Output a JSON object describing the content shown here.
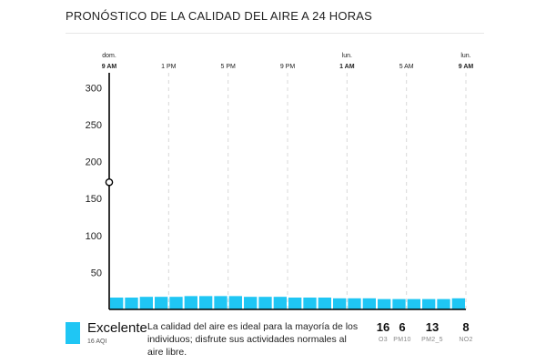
{
  "title": "PRONÓSTICO DE LA CALIDAD DEL AIRE A 24 HORAS",
  "colors": {
    "bar": "#1fc6f4",
    "axis": "#000000",
    "grid": "#d9d9d9"
  },
  "chart_data": {
    "type": "bar",
    "ylim": [
      0,
      320
    ],
    "yticks": [
      50,
      100,
      150,
      200,
      250,
      300
    ],
    "xticks": [
      {
        "hour": 0,
        "day": "dom.",
        "time": "9 AM"
      },
      {
        "hour": 4,
        "day": "",
        "time": "1 PM"
      },
      {
        "hour": 8,
        "day": "",
        "time": "5 PM"
      },
      {
        "hour": 12,
        "day": "",
        "time": "9 PM"
      },
      {
        "hour": 16,
        "day": "lun.",
        "time": "1 AM"
      },
      {
        "hour": 20,
        "day": "",
        "time": "5 AM"
      },
      {
        "hour": 24,
        "day": "lun.",
        "time": "9 AM"
      }
    ],
    "series": [
      {
        "values": [
          16,
          16,
          17,
          17,
          17,
          18,
          18,
          18,
          18,
          17,
          17,
          17,
          16,
          16,
          16,
          15,
          15,
          15,
          14,
          14,
          14,
          14,
          14,
          15
        ]
      }
    ],
    "current_marker": {
      "hour": 0,
      "value": 172
    }
  },
  "footer": {
    "level": "Excelente",
    "aqi": "16 AQI",
    "description": "La calidad del aire es ideal para la mayoría de los individuos; disfrute sus actividades normales al aire libre.",
    "pollutants": [
      {
        "value": "16",
        "name": "O3"
      },
      {
        "value": "6",
        "name": "PM10"
      },
      {
        "value": "13",
        "name": "PM2_5"
      },
      {
        "value": "8",
        "name": "NO2"
      }
    ]
  }
}
